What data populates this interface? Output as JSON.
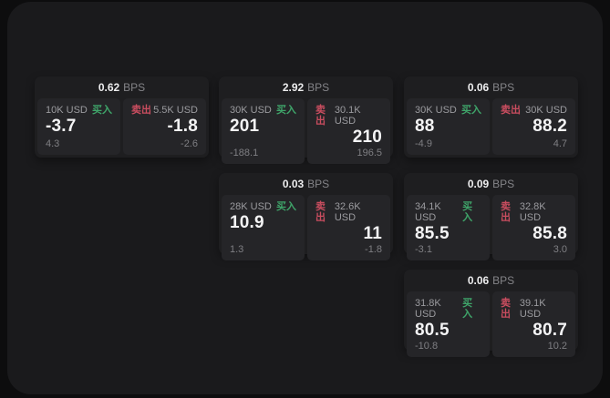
{
  "labels": {
    "bps_unit": "BPS",
    "buy": "买入",
    "sell": "卖出"
  },
  "colors": {
    "buy_green": "#3fa56a",
    "sell_red": "#c94d5f",
    "panel_background": "#1a1a1c",
    "card_background": "#1e1e20",
    "tile_background": "#252528"
  },
  "cards": [
    {
      "spread": "0.62",
      "buy": {
        "notional": "10K USD",
        "price": "-3.7",
        "change": "4.3"
      },
      "sell": {
        "notional": "5.5K USD",
        "price": "-1.8",
        "change": "-2.6"
      }
    },
    {
      "spread": "2.92",
      "buy": {
        "notional": "30K USD",
        "price": "201",
        "change": "-188.1"
      },
      "sell": {
        "notional": "30.1K USD",
        "price": "210",
        "change": "196.5"
      }
    },
    {
      "spread": "0.06",
      "buy": {
        "notional": "30K USD",
        "price": "88",
        "change": "-4.9"
      },
      "sell": {
        "notional": "30K USD",
        "price": "88.2",
        "change": "4.7"
      }
    },
    {
      "spread": "0.03",
      "buy": {
        "notional": "28K USD",
        "price": "10.9",
        "change": "1.3"
      },
      "sell": {
        "notional": "32.6K USD",
        "price": "11",
        "change": "-1.8"
      }
    },
    {
      "spread": "0.09",
      "buy": {
        "notional": "34.1K USD",
        "price": "85.5",
        "change": "-3.1"
      },
      "sell": {
        "notional": "32.8K USD",
        "price": "85.8",
        "change": "3.0"
      }
    },
    {
      "spread": "0.06",
      "buy": {
        "notional": "31.8K USD",
        "price": "80.5",
        "change": "-10.8"
      },
      "sell": {
        "notional": "39.1K USD",
        "price": "80.7",
        "change": "10.2"
      }
    }
  ]
}
